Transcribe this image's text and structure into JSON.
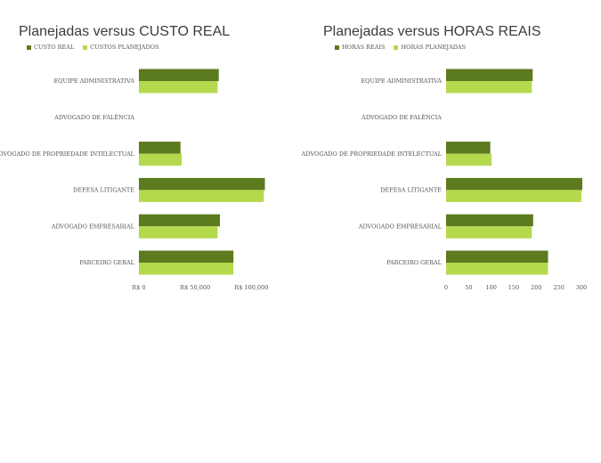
{
  "colors": {
    "real": "#5c7a1e",
    "planned": "#b5d94d"
  },
  "chart_data": [
    {
      "type": "bar",
      "orientation": "horizontal",
      "title": "Planejadas versus CUSTO REAL",
      "categories": [
        "EQUIPE ADMINISTRATIVA",
        "ADVOGADO DE FALÊNCIA",
        "ADVOGADO DE PROPRIEDADE INTELECTUAL",
        "DEFESA LITIGANTE",
        "ADVOGADO EMPRESARIAL",
        "PARCEIRO GERAL"
      ],
      "series": [
        {
          "name": "CUSTO REAL",
          "values": [
            71000,
            0,
            37000,
            112000,
            72000,
            84000
          ]
        },
        {
          "name": "CUSTOS PLANEJADOS",
          "values": [
            70000,
            0,
            38000,
            111000,
            70000,
            84000
          ]
        }
      ],
      "xlim": [
        0,
        110000
      ],
      "xticks": [
        0,
        50000,
        100000
      ],
      "xtick_labels": [
        "R$ 0",
        "R$ 50,000",
        "R$ 100,000"
      ],
      "legend_position": "top-left",
      "grid": false
    },
    {
      "type": "bar",
      "orientation": "horizontal",
      "title": "Planejadas versus HORAS REAIS",
      "categories": [
        "EQUIPE ADMINISTRATIVA",
        "ADVOGADO DE FALÊNCIA",
        "ADVOGADO DE PROPRIEDADE INTELECTUAL",
        "DEFESA LITIGANTE",
        "ADVOGADO EMPRESARIAL",
        "PARCEIRO GERAL"
      ],
      "series": [
        {
          "name": "HORAS REAIS",
          "values": [
            192,
            0,
            98,
            302,
            193,
            226
          ]
        },
        {
          "name": "HORAS PLANEJADAS",
          "values": [
            190,
            0,
            101,
            300,
            190,
            226
          ]
        }
      ],
      "xlim": [
        0,
        300
      ],
      "xticks": [
        0,
        50,
        100,
        150,
        200,
        250,
        300
      ],
      "xtick_labels": [
        "0",
        "50",
        "100",
        "150",
        "200",
        "250",
        "300"
      ],
      "legend_position": "top-left",
      "grid": false
    }
  ]
}
